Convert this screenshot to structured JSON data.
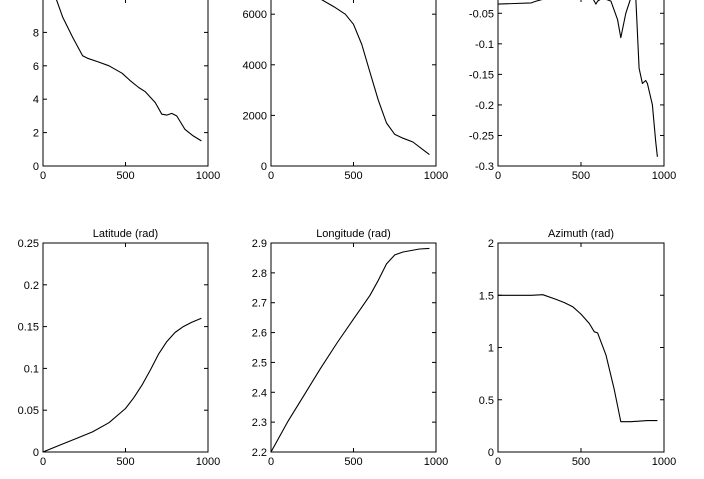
{
  "chart_data": [
    {
      "type": "line",
      "title": "",
      "xlim": [
        0,
        1000
      ],
      "ylim": [
        0,
        10
      ],
      "xticks": [
        0,
        500,
        1000
      ],
      "yticks": [
        0,
        2,
        4,
        6,
        8
      ],
      "xtick_labels": [
        "0",
        "500",
        "1000"
      ],
      "ytick_labels": [
        "0",
        "2",
        "4",
        "6",
        "8"
      ],
      "series": [
        {
          "x": [
            80,
            120,
            180,
            240,
            270,
            330,
            400,
            480,
            530,
            580,
            620,
            680,
            720,
            750,
            780,
            810,
            860,
            910,
            960
          ],
          "y": [
            10,
            8.9,
            7.7,
            6.6,
            6.45,
            6.25,
            6.0,
            5.55,
            5.1,
            4.7,
            4.45,
            3.8,
            3.1,
            3.05,
            3.15,
            3.0,
            2.2,
            1.8,
            1.5
          ]
        }
      ],
      "grid": false
    },
    {
      "type": "line",
      "title": "",
      "xlim": [
        0,
        1000
      ],
      "ylim": [
        0,
        6600
      ],
      "xticks": [
        0,
        500,
        1000
      ],
      "yticks": [
        0,
        2000,
        4000,
        6000
      ],
      "xtick_labels": [
        "0",
        "500",
        "1000"
      ],
      "ytick_labels": [
        "0",
        "2000",
        "4000",
        "6000"
      ],
      "series": [
        {
          "x": [
            300,
            380,
            450,
            500,
            550,
            600,
            650,
            700,
            750,
            800,
            860,
            920,
            960
          ],
          "y": [
            6600,
            6300,
            6000,
            5600,
            4800,
            3700,
            2600,
            1700,
            1250,
            1100,
            950,
            650,
            450
          ]
        }
      ],
      "grid": false
    },
    {
      "type": "line",
      "title": "",
      "xlim": [
        0,
        1000
      ],
      "ylim": [
        -0.3,
        -0.025
      ],
      "xticks": [
        0,
        500,
        1000
      ],
      "yticks": [
        -0.3,
        -0.25,
        -0.2,
        -0.15,
        -0.1,
        -0.05
      ],
      "xtick_labels": [
        "0",
        "500",
        "1000"
      ],
      "ytick_labels": [
        "-0.3",
        "-0.25",
        "-0.2",
        "-0.15",
        "-0.1",
        "-0.05"
      ],
      "series": [
        {
          "x": [
            0,
            100,
            200,
            230,
            300,
            400,
            500,
            570,
            590,
            600,
            630,
            680,
            720,
            740,
            770,
            800,
            830,
            850,
            870,
            890,
            900,
            930,
            950,
            960
          ],
          "y": [
            -0.035,
            -0.034,
            -0.033,
            -0.03,
            -0.025,
            -0.025,
            -0.025,
            -0.025,
            -0.035,
            -0.03,
            -0.025,
            -0.03,
            -0.06,
            -0.09,
            -0.05,
            -0.025,
            -0.025,
            -0.14,
            -0.165,
            -0.16,
            -0.165,
            -0.2,
            -0.26,
            -0.285
          ]
        }
      ],
      "grid": false
    },
    {
      "type": "line",
      "title": "Latitude (rad)",
      "xlim": [
        0,
        1000
      ],
      "ylim": [
        0,
        0.25
      ],
      "xticks": [
        0,
        500,
        1000
      ],
      "yticks": [
        0,
        0.05,
        0.1,
        0.15,
        0.2,
        0.25
      ],
      "xtick_labels": [
        "0",
        "500",
        "1000"
      ],
      "ytick_labels": [
        "0",
        "0.05",
        "0.1",
        "0.15",
        "0.2",
        "0.25"
      ],
      "series": [
        {
          "x": [
            0,
            100,
            200,
            300,
            400,
            500,
            550,
            600,
            650,
            700,
            750,
            800,
            850,
            900,
            960
          ],
          "y": [
            0,
            0.008,
            0.016,
            0.024,
            0.035,
            0.052,
            0.065,
            0.08,
            0.098,
            0.117,
            0.132,
            0.143,
            0.15,
            0.155,
            0.16
          ]
        }
      ],
      "grid": false
    },
    {
      "type": "line",
      "title": "Longitude (rad)",
      "xlim": [
        0,
        1000
      ],
      "ylim": [
        2.2,
        2.9
      ],
      "xticks": [
        0,
        500,
        1000
      ],
      "yticks": [
        2.2,
        2.3,
        2.4,
        2.5,
        2.6,
        2.7,
        2.8,
        2.9
      ],
      "xtick_labels": [
        "0",
        "500",
        "1000"
      ],
      "ytick_labels": [
        "2.2",
        "2.3",
        "2.4",
        "2.5",
        "2.6",
        "2.7",
        "2.8",
        "2.9"
      ],
      "series": [
        {
          "x": [
            0,
            100,
            200,
            300,
            400,
            500,
            550,
            600,
            650,
            700,
            750,
            800,
            850,
            900,
            960
          ],
          "y": [
            2.2,
            2.3,
            2.39,
            2.48,
            2.565,
            2.645,
            2.685,
            2.725,
            2.775,
            2.83,
            2.86,
            2.87,
            2.875,
            2.88,
            2.882
          ]
        }
      ],
      "grid": false
    },
    {
      "type": "line",
      "title": "Azimuth (rad)",
      "xlim": [
        0,
        1000
      ],
      "ylim": [
        0,
        2
      ],
      "xticks": [
        0,
        500,
        1000
      ],
      "yticks": [
        0,
        0.5,
        1,
        1.5,
        2
      ],
      "xtick_labels": [
        "0",
        "500",
        "1000"
      ],
      "ytick_labels": [
        "0",
        "0.5",
        "1",
        "1.5",
        "2"
      ],
      "series": [
        {
          "x": [
            0,
            100,
            200,
            270,
            350,
            400,
            450,
            500,
            550,
            580,
            600,
            650,
            700,
            740,
            800,
            900,
            960
          ],
          "y": [
            1.5,
            1.5,
            1.5,
            1.505,
            1.46,
            1.43,
            1.39,
            1.32,
            1.23,
            1.15,
            1.14,
            0.93,
            0.6,
            0.29,
            0.29,
            0.3,
            0.3
          ]
        }
      ],
      "grid": false
    }
  ]
}
